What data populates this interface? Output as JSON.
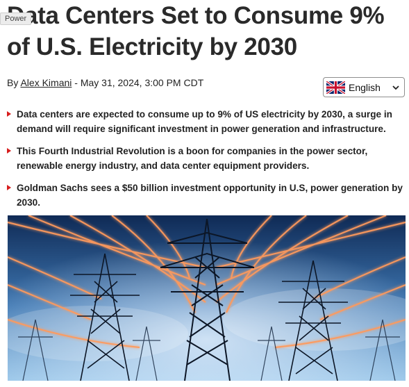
{
  "category_tag": "Power",
  "article": {
    "title": "Data Centers Set to Consume 9% of U.S. Electricity by 2030",
    "byline": {
      "prefix": "By ",
      "author": "Alex Kimani",
      "date": " - May 31, 2024, 3:00 PM CDT"
    },
    "bullets": [
      "Data centers are expected to consume up to 9% of US electricity by 2030, a surge in demand will require significant investment in power generation and infrastructure.",
      "This Fourth Industrial Revolution is a boon for companies in the power sector, renewable energy industry, and data center equipment providers.",
      "Goldman Sachs sees a $50 billion investment opportunity in U.S, power generation by 2030."
    ]
  },
  "language_selector": {
    "selected": "English",
    "flag_icon": "uk-flag-icon"
  },
  "colors": {
    "bullet_arrow": "#d71e1e",
    "sky_top": "#0f2a55",
    "sky_bottom": "#7fb4de",
    "glow": "#ff8a4a"
  }
}
